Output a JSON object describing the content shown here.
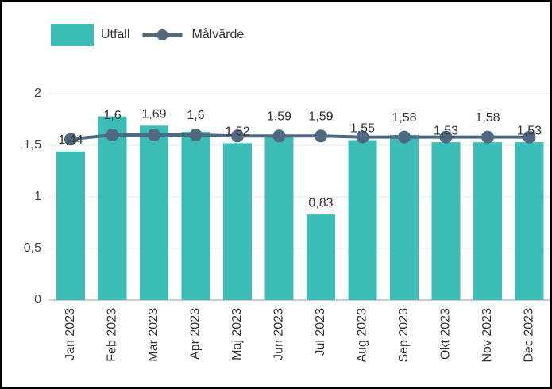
{
  "chart_data": {
    "type": "bar",
    "categories": [
      "Jan 2023",
      "Feb 2023",
      "Mar 2023",
      "Apr 2023",
      "Maj 2023",
      "Jun 2023",
      "Jul 2023",
      "Aug 2023",
      "Sep 2023",
      "Okt 2023",
      "Nov 2023",
      "Dec 2023"
    ],
    "series": [
      {
        "name": "Utfall",
        "type": "bar",
        "color": "#3dbdb8",
        "values": [
          1.44,
          1.78,
          1.69,
          1.63,
          1.52,
          1.6,
          0.83,
          1.55,
          1.6,
          1.53,
          1.53,
          1.53
        ],
        "value_labels": [
          "1,44",
          null,
          "1,69",
          null,
          "1,52",
          null,
          "0,83",
          "1,55",
          null,
          "1,53",
          null,
          "1,53"
        ]
      },
      {
        "name": "Målvärde",
        "type": "line",
        "color": "#4f6a80",
        "values": [
          1.56,
          1.6,
          1.6,
          1.6,
          1.59,
          1.59,
          1.59,
          1.58,
          1.58,
          1.58,
          1.58,
          1.58
        ],
        "value_labels": [
          null,
          "1,6",
          null,
          "1,6",
          null,
          "1,59",
          "1,59",
          null,
          "1,58",
          null,
          "1,58",
          null
        ]
      }
    ],
    "ylim": [
      0,
      2
    ],
    "yticks": [
      0,
      {
        "value": 0.5,
        "label": "0,5"
      },
      1,
      {
        "value": 1.5,
        "label": "1,5"
      },
      2
    ],
    "grid": true,
    "legend": "top-left"
  }
}
